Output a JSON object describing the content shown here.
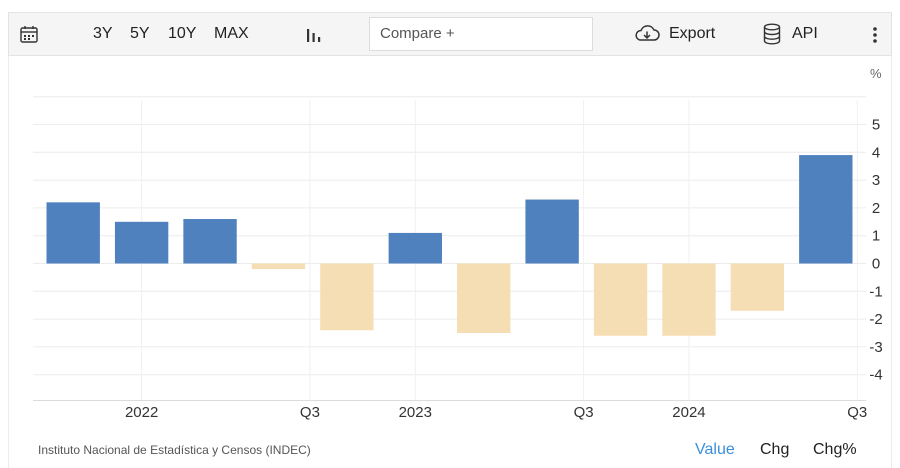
{
  "toolbar": {
    "calendar_icon": "calendar-icon",
    "ranges": [
      "3Y",
      "5Y",
      "10Y",
      "MAX"
    ],
    "chart_type_icon": "bar-chart-icon",
    "compare_placeholder": "Compare +",
    "export_label": "Export",
    "export_icon": "cloud-download-icon",
    "api_label": "API",
    "api_icon": "database-icon",
    "more_icon": "vertical-dots-icon"
  },
  "footer": {
    "source": "Instituto Nacional de Estadística y Censos (INDEC)",
    "modes": [
      "Value",
      "Chg",
      "Chg%"
    ],
    "active_mode": "Value"
  },
  "colors": {
    "positive": "#4e81bd",
    "negative": "#f5deb3",
    "active_mode": "#3a8fd9"
  },
  "chart_data": {
    "type": "bar",
    "unit": "%",
    "x_labels": [
      "2022",
      "Q3",
      "2023",
      "Q3",
      "2024",
      "Q3"
    ],
    "values": [
      2.2,
      1.5,
      1.6,
      -0.2,
      -2.4,
      1.1,
      -2.5,
      2.3,
      -2.6,
      -2.6,
      -1.7,
      3.9
    ],
    "yticks": [
      5,
      4,
      3,
      2,
      1,
      0,
      -1,
      -2,
      -3,
      -4
    ],
    "ylim": [
      -5,
      6
    ],
    "grid": true,
    "axis_position": "right"
  }
}
